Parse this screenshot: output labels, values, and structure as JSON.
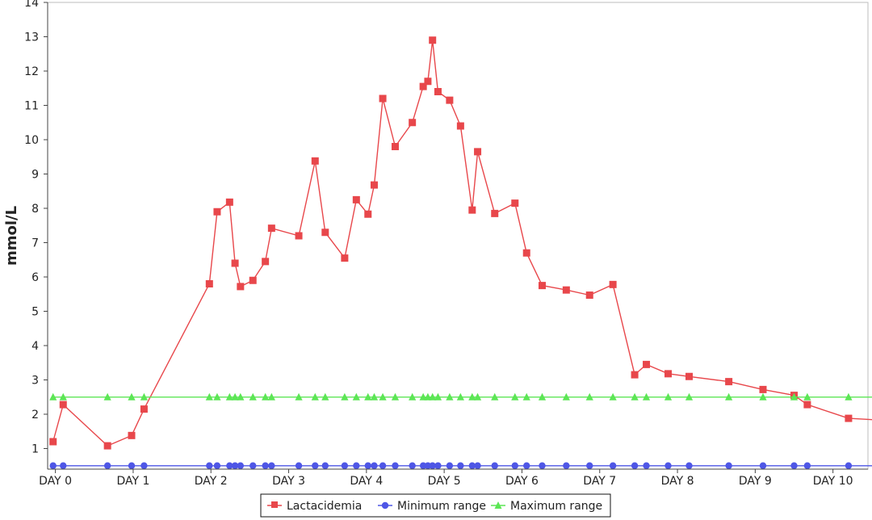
{
  "chart_data": {
    "type": "line",
    "title": "",
    "xlabel": "",
    "ylabel": "mmol/L",
    "xlim": [
      -0.1,
      10.45
    ],
    "ylim": [
      0.4,
      14
    ],
    "x_ticks": [
      {
        "value": 0,
        "label": "DAY 0"
      },
      {
        "value": 1,
        "label": "DAY 1"
      },
      {
        "value": 2,
        "label": "DAY 2"
      },
      {
        "value": 3,
        "label": "DAY 3"
      },
      {
        "value": 4,
        "label": "DAY 4"
      },
      {
        "value": 5,
        "label": "DAY 5"
      },
      {
        "value": 6,
        "label": "DAY 6"
      },
      {
        "value": 7,
        "label": "DAY 7"
      },
      {
        "value": 8,
        "label": "DAY 8"
      },
      {
        "value": 9,
        "label": "DAY 9"
      },
      {
        "value": 10,
        "label": "DAY 10"
      }
    ],
    "y_ticks": [
      {
        "value": 1,
        "label": "1"
      },
      {
        "value": 2,
        "label": "2"
      },
      {
        "value": 3,
        "label": "3"
      },
      {
        "value": 4,
        "label": "4"
      },
      {
        "value": 5,
        "label": "5"
      },
      {
        "value": 6,
        "label": "6"
      },
      {
        "value": 7,
        "label": "7"
      },
      {
        "value": 8,
        "label": "8"
      },
      {
        "value": 9,
        "label": "9"
      },
      {
        "value": 10,
        "label": "10"
      },
      {
        "value": 11,
        "label": "11"
      },
      {
        "value": 12,
        "label": "12"
      },
      {
        "value": 13,
        "label": "13"
      },
      {
        "value": 14,
        "label": "14"
      }
    ],
    "grid": false,
    "legend_position": "bottom-center",
    "series": [
      {
        "name": "Lactacidemia",
        "color": "#e8474b",
        "marker": "square",
        "points": [
          [
            -0.03,
            1.2
          ],
          [
            0.1,
            2.28
          ],
          [
            0.67,
            1.08
          ],
          [
            0.98,
            1.38
          ],
          [
            1.14,
            2.15
          ],
          [
            1.98,
            5.8
          ],
          [
            2.08,
            7.9
          ],
          [
            2.24,
            8.18
          ],
          [
            2.31,
            6.4
          ],
          [
            2.38,
            5.72
          ],
          [
            2.54,
            5.9
          ],
          [
            2.7,
            6.45
          ],
          [
            2.78,
            7.42
          ],
          [
            3.13,
            7.2
          ],
          [
            3.34,
            9.38
          ],
          [
            3.47,
            7.3
          ],
          [
            3.72,
            6.55
          ],
          [
            3.87,
            8.25
          ],
          [
            4.02,
            7.83
          ],
          [
            4.1,
            8.68
          ],
          [
            4.21,
            11.2
          ],
          [
            4.37,
            9.8
          ],
          [
            4.59,
            10.5
          ],
          [
            4.73,
            11.55
          ],
          [
            4.79,
            11.7
          ],
          [
            4.85,
            12.9
          ],
          [
            4.92,
            11.4
          ],
          [
            5.07,
            11.15
          ],
          [
            5.21,
            10.4
          ],
          [
            5.36,
            7.95
          ],
          [
            5.43,
            9.65
          ],
          [
            5.65,
            7.85
          ],
          [
            5.91,
            8.15
          ],
          [
            6.06,
            6.7
          ],
          [
            6.26,
            5.75
          ],
          [
            6.57,
            5.62
          ],
          [
            6.87,
            5.47
          ],
          [
            7.17,
            5.78
          ],
          [
            7.45,
            3.15
          ],
          [
            7.6,
            3.45
          ],
          [
            7.88,
            3.18
          ],
          [
            8.15,
            3.1
          ],
          [
            8.66,
            2.95
          ],
          [
            9.1,
            2.72
          ],
          [
            9.5,
            2.55
          ],
          [
            9.67,
            2.28
          ],
          [
            10.2,
            1.88
          ],
          [
            10.6,
            1.83
          ]
        ]
      },
      {
        "name": "Minimum range",
        "color": "#4e56e6",
        "marker": "circle",
        "points": [
          [
            -0.03,
            0.5
          ],
          [
            0.1,
            0.5
          ],
          [
            0.67,
            0.5
          ],
          [
            0.98,
            0.5
          ],
          [
            1.14,
            0.5
          ],
          [
            1.98,
            0.5
          ],
          [
            2.08,
            0.5
          ],
          [
            2.24,
            0.5
          ],
          [
            2.31,
            0.5
          ],
          [
            2.38,
            0.5
          ],
          [
            2.54,
            0.5
          ],
          [
            2.7,
            0.5
          ],
          [
            2.78,
            0.5
          ],
          [
            3.13,
            0.5
          ],
          [
            3.34,
            0.5
          ],
          [
            3.47,
            0.5
          ],
          [
            3.72,
            0.5
          ],
          [
            3.87,
            0.5
          ],
          [
            4.02,
            0.5
          ],
          [
            4.1,
            0.5
          ],
          [
            4.21,
            0.5
          ],
          [
            4.37,
            0.5
          ],
          [
            4.59,
            0.5
          ],
          [
            4.73,
            0.5
          ],
          [
            4.79,
            0.5
          ],
          [
            4.85,
            0.5
          ],
          [
            4.92,
            0.5
          ],
          [
            5.07,
            0.5
          ],
          [
            5.21,
            0.5
          ],
          [
            5.36,
            0.5
          ],
          [
            5.43,
            0.5
          ],
          [
            5.65,
            0.5
          ],
          [
            5.91,
            0.5
          ],
          [
            6.06,
            0.5
          ],
          [
            6.26,
            0.5
          ],
          [
            6.57,
            0.5
          ],
          [
            6.87,
            0.5
          ],
          [
            7.17,
            0.5
          ],
          [
            7.45,
            0.5
          ],
          [
            7.6,
            0.5
          ],
          [
            7.88,
            0.5
          ],
          [
            8.15,
            0.5
          ],
          [
            8.66,
            0.5
          ],
          [
            9.1,
            0.5
          ],
          [
            9.5,
            0.5
          ],
          [
            9.67,
            0.5
          ],
          [
            10.2,
            0.5
          ],
          [
            10.6,
            0.5
          ]
        ]
      },
      {
        "name": "Maximum range",
        "color": "#5ce655",
        "marker": "triangle",
        "points": [
          [
            -0.03,
            2.5
          ],
          [
            0.1,
            2.5
          ],
          [
            0.67,
            2.5
          ],
          [
            0.98,
            2.5
          ],
          [
            1.14,
            2.5
          ],
          [
            1.98,
            2.5
          ],
          [
            2.08,
            2.5
          ],
          [
            2.24,
            2.5
          ],
          [
            2.31,
            2.5
          ],
          [
            2.38,
            2.5
          ],
          [
            2.54,
            2.5
          ],
          [
            2.7,
            2.5
          ],
          [
            2.78,
            2.5
          ],
          [
            3.13,
            2.5
          ],
          [
            3.34,
            2.5
          ],
          [
            3.47,
            2.5
          ],
          [
            3.72,
            2.5
          ],
          [
            3.87,
            2.5
          ],
          [
            4.02,
            2.5
          ],
          [
            4.1,
            2.5
          ],
          [
            4.21,
            2.5
          ],
          [
            4.37,
            2.5
          ],
          [
            4.59,
            2.5
          ],
          [
            4.73,
            2.5
          ],
          [
            4.79,
            2.5
          ],
          [
            4.85,
            2.5
          ],
          [
            4.92,
            2.5
          ],
          [
            5.07,
            2.5
          ],
          [
            5.21,
            2.5
          ],
          [
            5.36,
            2.5
          ],
          [
            5.43,
            2.5
          ],
          [
            5.65,
            2.5
          ],
          [
            5.91,
            2.5
          ],
          [
            6.06,
            2.5
          ],
          [
            6.26,
            2.5
          ],
          [
            6.57,
            2.5
          ],
          [
            6.87,
            2.5
          ],
          [
            7.17,
            2.5
          ],
          [
            7.45,
            2.5
          ],
          [
            7.6,
            2.5
          ],
          [
            7.88,
            2.5
          ],
          [
            8.15,
            2.5
          ],
          [
            8.66,
            2.5
          ],
          [
            9.1,
            2.5
          ],
          [
            9.5,
            2.5
          ],
          [
            9.67,
            2.5
          ],
          [
            10.2,
            2.5
          ],
          [
            10.6,
            2.5
          ]
        ]
      }
    ]
  }
}
